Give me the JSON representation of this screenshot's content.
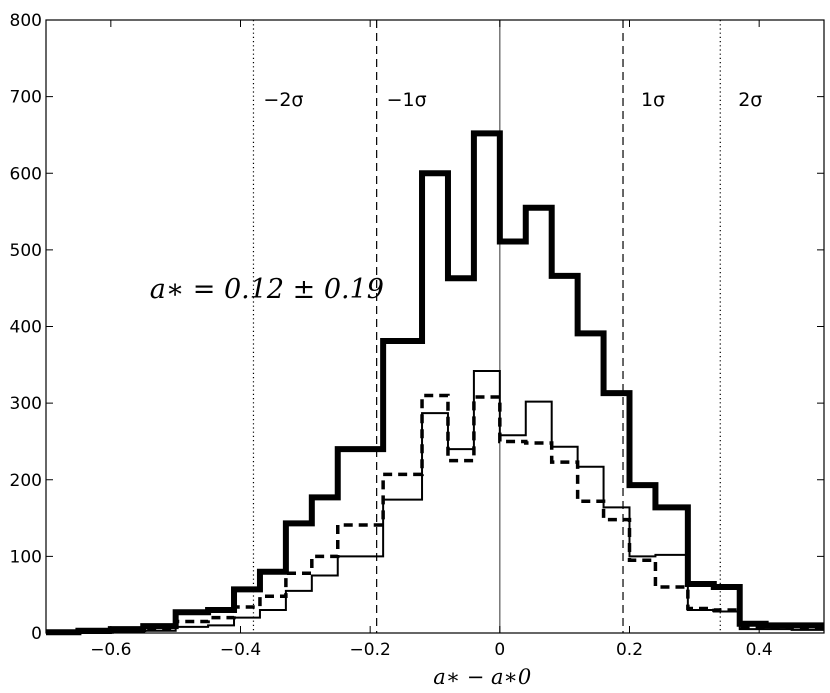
{
  "chart_data": {
    "type": "histogram",
    "title": "",
    "xlabel": "a∗ − a∗0",
    "ylabel": "",
    "xlim": [
      -0.7,
      0.5
    ],
    "ylim": [
      0,
      800
    ],
    "xticks": [
      -0.6,
      -0.4,
      -0.2,
      0,
      0.2,
      0.4
    ],
    "xtick_labels": [
      "−0.6",
      "−0.4",
      "−0.2",
      "0",
      "0.2",
      "0.4"
    ],
    "yticks": [
      0,
      100,
      200,
      300,
      400,
      500,
      600,
      700,
      800
    ],
    "ytick_labels": [
      "0",
      "100",
      "200",
      "300",
      "400",
      "500",
      "600",
      "700",
      "800"
    ],
    "grid": false,
    "bin_edges": [
      -0.7,
      -0.65,
      -0.6,
      -0.55,
      -0.5,
      -0.45,
      -0.41,
      -0.37,
      -0.33,
      -0.29,
      -0.25,
      -0.18,
      -0.12,
      -0.08,
      -0.04,
      0,
      0.04,
      0.08,
      0.12,
      0.16,
      0.2,
      0.24,
      0.29,
      0.33,
      0.37,
      0.41,
      0.45,
      0.5
    ],
    "series": [
      {
        "style": "thick",
        "values": [
          1,
          3,
          5,
          9,
          27,
          30,
          57,
          80,
          143,
          177,
          240,
          381,
          600,
          463,
          652,
          511,
          555,
          466,
          391,
          313,
          193,
          164,
          64,
          60,
          12,
          10,
          10
        ]
      },
      {
        "style": "dashed",
        "values": [
          1,
          2,
          3,
          6,
          15,
          20,
          34,
          48,
          78,
          100,
          141,
          207,
          310,
          225,
          308,
          250,
          248,
          223,
          172,
          148,
          95,
          60,
          32,
          30,
          8,
          8,
          7
        ]
      },
      {
        "style": "thin",
        "values": [
          0,
          0,
          1,
          3,
          8,
          10,
          20,
          30,
          55,
          75,
          100,
          174,
          287,
          240,
          342,
          258,
          302,
          243,
          217,
          164,
          100,
          102,
          30,
          28,
          5,
          5,
          4
        ]
      }
    ],
    "reference_lines": [
      {
        "x": -0.38,
        "style": "dotted",
        "label": "−2σ"
      },
      {
        "x": -0.19,
        "style": "dashed",
        "label": "−1σ"
      },
      {
        "x": 0,
        "style": "solid",
        "label": ""
      },
      {
        "x": 0.19,
        "style": "dashed",
        "label": "1σ"
      },
      {
        "x": 0.34,
        "style": "dotted",
        "label": "2σ"
      }
    ],
    "annotations": [
      {
        "text": "a∗ = 0.12 ± 0.19",
        "x": -0.54,
        "y": 450
      }
    ]
  }
}
